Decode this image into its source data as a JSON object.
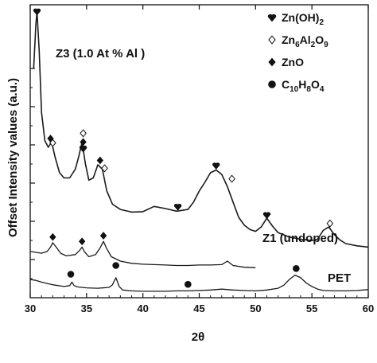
{
  "chart_data": {
    "type": "line",
    "xlabel": "2θ",
    "ylabel": "Offset Intensity values (a.u.)",
    "xlim": [
      30,
      60
    ],
    "x_ticks": [
      "30",
      "35",
      "40",
      "45",
      "50",
      "55",
      "60"
    ],
    "grid": false,
    "legend_position": "top-right",
    "legend": [
      {
        "marker": "heart",
        "parts": [
          [
            "Zn(OH)",
            "normal"
          ],
          [
            "2",
            "sub"
          ]
        ]
      },
      {
        "marker": "open-diamond",
        "parts": [
          [
            "Zn",
            "normal"
          ],
          [
            "6",
            "sub"
          ],
          [
            "Al",
            "normal"
          ],
          [
            "2",
            "sub"
          ],
          [
            "O",
            "normal"
          ],
          [
            "9",
            "sub"
          ]
        ]
      },
      {
        "marker": "filled-diamond",
        "parts": [
          [
            "ZnO",
            "normal"
          ]
        ]
      },
      {
        "marker": "circle",
        "parts": [
          [
            "C",
            "normal"
          ],
          [
            "10",
            "sub"
          ],
          [
            "H",
            "normal"
          ],
          [
            "8",
            "sub"
          ],
          [
            "O",
            "normal"
          ],
          [
            "4",
            "sub"
          ]
        ]
      }
    ],
    "series": [
      {
        "name": "Z3 (1.0 At % Al )",
        "label_position": "upper-left",
        "x": [
          30.3,
          30.5,
          30.6,
          30.8,
          31.0,
          31.3,
          31.6,
          31.9,
          32.2,
          32.6,
          33.0,
          33.5,
          34.0,
          34.3,
          34.6,
          34.9,
          35.2,
          35.6,
          36.0,
          36.4,
          36.8,
          37.3,
          38.0,
          39.0,
          40.0,
          41.0,
          42.0,
          43.0,
          44.0,
          44.5,
          45.0,
          45.5,
          46.0,
          46.5,
          47.0,
          47.5,
          48.0,
          48.5,
          49.0,
          49.5,
          50.0,
          50.5,
          51.0,
          51.5,
          52.0,
          53.0,
          54.0,
          55.0,
          55.5,
          56.0,
          56.5,
          57.0,
          57.5,
          58.0,
          59.0,
          60.0
        ],
        "y": [
          520,
          620,
          650,
          560,
          420,
          355,
          340,
          352,
          318,
          282,
          270,
          270,
          290,
          318,
          352,
          302,
          265,
          270,
          300,
          290,
          240,
          210,
          198,
          192,
          193,
          205,
          200,
          194,
          198,
          215,
          240,
          260,
          282,
          288,
          278,
          250,
          215,
          180,
          162,
          152,
          148,
          158,
          178,
          160,
          145,
          135,
          130,
          127,
          130,
          150,
          158,
          140,
          128,
          120,
          115,
          112
        ]
      },
      {
        "name": "Z1 (undoped)",
        "label_position": "right",
        "x": [
          30.0,
          30.5,
          31.0,
          31.5,
          31.8,
          32.0,
          32.3,
          32.7,
          33.2,
          34.0,
          34.4,
          34.6,
          34.8,
          35.2,
          35.8,
          36.2,
          36.5,
          36.8,
          37.2,
          38.0,
          39.0,
          40.0,
          41.0,
          42.0,
          43.0,
          44.0,
          45.0,
          46.0,
          47.0,
          47.5,
          48.0,
          49.0,
          50.0
        ],
        "y": [
          102,
          100,
          98,
          102,
          112,
          122,
          112,
          98,
          92,
          95,
          105,
          112,
          102,
          90,
          95,
          110,
          125,
          108,
          90,
          80,
          75,
          73,
          72,
          71,
          70,
          70,
          71,
          71,
          72,
          80,
          70,
          66,
          65
        ]
      },
      {
        "name": "PET",
        "label_position": "right",
        "x": [
          30.0,
          30.5,
          31.0,
          32.0,
          33.0,
          33.5,
          33.7,
          33.9,
          34.2,
          35.0,
          36.0,
          37.0,
          37.3,
          37.6,
          37.9,
          38.2,
          39.0,
          40.0,
          41.0,
          42.0,
          43.0,
          44.0,
          45.0,
          46.0,
          47.0,
          48.0,
          49.0,
          50.0,
          51.0,
          52.0,
          52.5,
          53.0,
          53.5,
          54.0,
          54.5,
          55.0,
          55.5,
          56.0,
          57.0,
          58.0,
          59.0,
          60.0
        ],
        "y": [
          38,
          36,
          32,
          26,
          22,
          24,
          32,
          24,
          21,
          19,
          18,
          20,
          26,
          42,
          22,
          14,
          12,
          11,
          11,
          11,
          12,
          12,
          13,
          14,
          16,
          14,
          13,
          12,
          14,
          18,
          25,
          38,
          48,
          42,
          30,
          22,
          16,
          13,
          12,
          12,
          13,
          15
        ]
      }
    ],
    "markers": [
      {
        "symbol": "heart",
        "x": 30.6,
        "y": 650
      },
      {
        "symbol": "filled-diamond",
        "x": 31.8,
        "y": 360
      },
      {
        "symbol": "open-diamond",
        "x": 32.0,
        "y": 350
      },
      {
        "symbol": "open-diamond",
        "x": 34.7,
        "y": 372
      },
      {
        "symbol": "filled-diamond",
        "x": 34.7,
        "y": 352
      },
      {
        "symbol": "heart",
        "x": 34.7,
        "y": 337
      },
      {
        "symbol": "filled-diamond",
        "x": 36.2,
        "y": 310
      },
      {
        "symbol": "open-diamond",
        "x": 36.6,
        "y": 292
      },
      {
        "symbol": "heart",
        "x": 43.1,
        "y": 204
      },
      {
        "symbol": "heart",
        "x": 46.5,
        "y": 298
      },
      {
        "symbol": "open-diamond",
        "x": 47.9,
        "y": 268
      },
      {
        "symbol": "heart",
        "x": 51.0,
        "y": 185
      },
      {
        "symbol": "open-diamond",
        "x": 56.6,
        "y": 166
      },
      {
        "symbol": "filled-diamond",
        "x": 32.0,
        "y": 135
      },
      {
        "symbol": "filled-diamond",
        "x": 34.6,
        "y": 125
      },
      {
        "symbol": "filled-diamond",
        "x": 36.5,
        "y": 138
      },
      {
        "symbol": "circle",
        "x": 33.6,
        "y": 50
      },
      {
        "symbol": "circle",
        "x": 37.6,
        "y": 70
      },
      {
        "symbol": "circle",
        "x": 44.0,
        "y": 27
      },
      {
        "symbol": "circle",
        "x": 53.6,
        "y": 63
      }
    ]
  }
}
